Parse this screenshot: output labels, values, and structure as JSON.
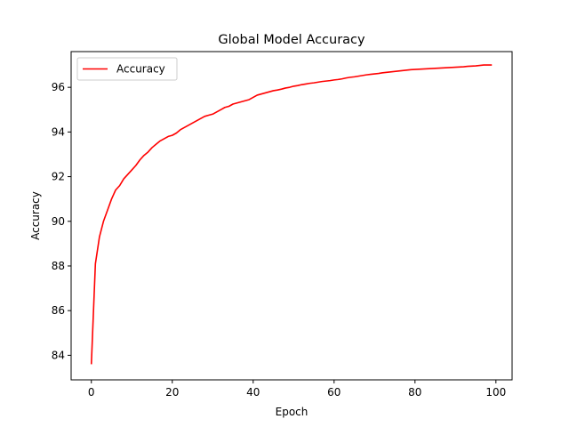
{
  "chart_data": {
    "type": "line",
    "title": "Global Model Accuracy",
    "xlabel": "Epoch",
    "ylabel": "Accuracy",
    "xlim": [
      -5,
      104
    ],
    "ylim": [
      82.9,
      97.6
    ],
    "xticks": [
      0,
      20,
      40,
      60,
      80,
      100
    ],
    "yticks": [
      84,
      86,
      88,
      90,
      92,
      94,
      96
    ],
    "grid": false,
    "legend_placement": "top-left",
    "series": [
      {
        "name": "Accuracy",
        "color": "#ff0000",
        "x": [
          0,
          1,
          2,
          3,
          4,
          5,
          6,
          7,
          8,
          9,
          10,
          11,
          12,
          13,
          14,
          15,
          16,
          17,
          18,
          19,
          20,
          21,
          22,
          23,
          24,
          25,
          26,
          27,
          28,
          29,
          30,
          31,
          32,
          33,
          34,
          35,
          36,
          37,
          38,
          39,
          40,
          41,
          42,
          43,
          44,
          45,
          46,
          47,
          48,
          49,
          50,
          51,
          52,
          53,
          54,
          55,
          56,
          57,
          58,
          59,
          60,
          61,
          62,
          63,
          64,
          65,
          66,
          67,
          68,
          69,
          70,
          71,
          72,
          73,
          74,
          75,
          76,
          77,
          78,
          79,
          80,
          81,
          82,
          83,
          84,
          85,
          86,
          87,
          88,
          89,
          90,
          91,
          92,
          93,
          94,
          95,
          96,
          97,
          98,
          99
        ],
        "y": [
          83.6,
          88.1,
          89.3,
          90.0,
          90.5,
          91.0,
          91.4,
          91.6,
          91.9,
          92.1,
          92.3,
          92.5,
          92.75,
          92.95,
          93.1,
          93.3,
          93.45,
          93.6,
          93.7,
          93.8,
          93.85,
          93.95,
          94.1,
          94.2,
          94.3,
          94.4,
          94.5,
          94.6,
          94.7,
          94.75,
          94.8,
          94.9,
          95.0,
          95.1,
          95.15,
          95.25,
          95.3,
          95.35,
          95.4,
          95.45,
          95.55,
          95.65,
          95.7,
          95.75,
          95.8,
          95.85,
          95.88,
          95.92,
          95.97,
          96.0,
          96.05,
          96.08,
          96.12,
          96.15,
          96.18,
          96.2,
          96.23,
          96.26,
          96.28,
          96.3,
          96.33,
          96.35,
          96.38,
          96.42,
          96.45,
          96.47,
          96.5,
          96.53,
          96.56,
          96.58,
          96.6,
          96.62,
          96.65,
          96.67,
          96.69,
          96.71,
          96.73,
          96.75,
          96.77,
          96.79,
          96.8,
          96.81,
          96.82,
          96.83,
          96.84,
          96.85,
          96.86,
          96.87,
          96.88,
          96.89,
          96.9,
          96.91,
          96.92,
          96.94,
          96.95,
          96.96,
          96.98,
          97.0,
          97.0,
          97.0
        ]
      }
    ]
  }
}
